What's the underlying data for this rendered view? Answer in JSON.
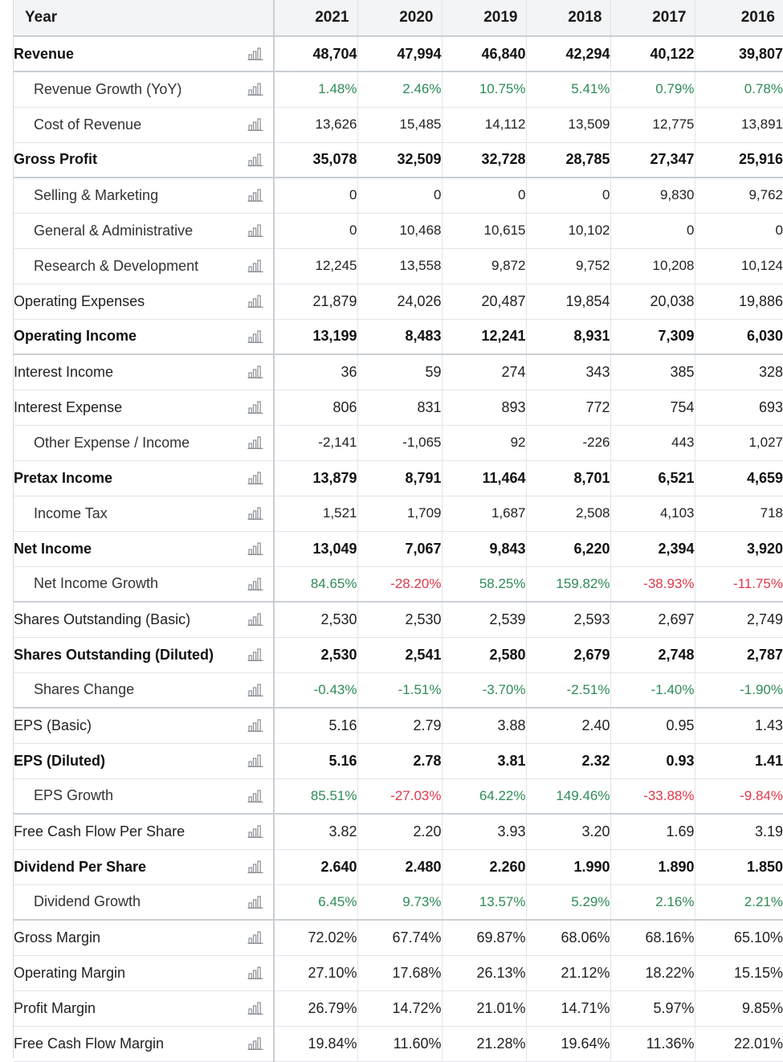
{
  "header": {
    "label": "Year",
    "years": [
      "2021",
      "2020",
      "2019",
      "2018",
      "2017",
      "2016"
    ]
  },
  "rows": [
    {
      "label": "Revenue",
      "style": "bold",
      "values": [
        "48,704",
        "47,994",
        "46,840",
        "42,294",
        "40,122",
        "39,807"
      ]
    },
    {
      "label": "Revenue Growth (YoY)",
      "style": "sub",
      "color": "auto",
      "values": [
        "1.48%",
        "2.46%",
        "10.75%",
        "5.41%",
        "0.79%",
        "0.78%"
      ]
    },
    {
      "label": "Cost of Revenue",
      "style": "sub",
      "values": [
        "13,626",
        "15,485",
        "14,112",
        "13,509",
        "12,775",
        "13,891"
      ]
    },
    {
      "label": "Gross Profit",
      "style": "bold",
      "values": [
        "35,078",
        "32,509",
        "32,728",
        "28,785",
        "27,347",
        "25,916"
      ]
    },
    {
      "label": "Selling & Marketing",
      "style": "sub",
      "values": [
        "0",
        "0",
        "0",
        "0",
        "9,830",
        "9,762"
      ]
    },
    {
      "label": "General & Administrative",
      "style": "sub",
      "values": [
        "0",
        "10,468",
        "10,615",
        "10,102",
        "0",
        "0"
      ]
    },
    {
      "label": "Research & Development",
      "style": "sub",
      "values": [
        "12,245",
        "13,558",
        "9,872",
        "9,752",
        "10,208",
        "10,124"
      ]
    },
    {
      "label": "Operating Expenses",
      "style": "normal",
      "values": [
        "21,879",
        "24,026",
        "20,487",
        "19,854",
        "20,038",
        "19,886"
      ]
    },
    {
      "label": "Operating Income",
      "style": "bold",
      "values": [
        "13,199",
        "8,483",
        "12,241",
        "8,931",
        "7,309",
        "6,030"
      ]
    },
    {
      "label": "Interest Income",
      "style": "normal",
      "values": [
        "36",
        "59",
        "274",
        "343",
        "385",
        "328"
      ]
    },
    {
      "label": "Interest Expense",
      "style": "normal",
      "values": [
        "806",
        "831",
        "893",
        "772",
        "754",
        "693"
      ]
    },
    {
      "label": "Other Expense / Income",
      "style": "sub",
      "values": [
        "-2,141",
        "-1,065",
        "92",
        "-226",
        "443",
        "1,027"
      ]
    },
    {
      "label": "Pretax Income",
      "style": "bold",
      "values": [
        "13,879",
        "8,791",
        "11,464",
        "8,701",
        "6,521",
        "4,659"
      ]
    },
    {
      "label": "Income Tax",
      "style": "sub",
      "values": [
        "1,521",
        "1,709",
        "1,687",
        "2,508",
        "4,103",
        "718"
      ]
    },
    {
      "label": "Net Income",
      "style": "bold",
      "values": [
        "13,049",
        "7,067",
        "9,843",
        "6,220",
        "2,394",
        "3,920"
      ]
    },
    {
      "label": "Net Income Growth",
      "style": "sub",
      "color": "auto",
      "values": [
        "84.65%",
        "-28.20%",
        "58.25%",
        "159.82%",
        "-38.93%",
        "-11.75%"
      ]
    },
    {
      "label": "Shares Outstanding (Basic)",
      "style": "normal",
      "values": [
        "2,530",
        "2,530",
        "2,539",
        "2,593",
        "2,697",
        "2,749"
      ]
    },
    {
      "label": "Shares Outstanding (Diluted)",
      "style": "bold",
      "values": [
        "2,530",
        "2,541",
        "2,580",
        "2,679",
        "2,748",
        "2,787"
      ]
    },
    {
      "label": "Shares Change",
      "style": "sub",
      "color": "green",
      "values": [
        "-0.43%",
        "-1.51%",
        "-3.70%",
        "-2.51%",
        "-1.40%",
        "-1.90%"
      ]
    },
    {
      "label": "EPS (Basic)",
      "style": "normal",
      "values": [
        "5.16",
        "2.79",
        "3.88",
        "2.40",
        "0.95",
        "1.43"
      ]
    },
    {
      "label": "EPS (Diluted)",
      "style": "bold",
      "values": [
        "5.16",
        "2.78",
        "3.81",
        "2.32",
        "0.93",
        "1.41"
      ]
    },
    {
      "label": "EPS Growth",
      "style": "sub",
      "color": "auto",
      "values": [
        "85.51%",
        "-27.03%",
        "64.22%",
        "149.46%",
        "-33.88%",
        "-9.84%"
      ]
    },
    {
      "label": "Free Cash Flow Per Share",
      "style": "normal",
      "values": [
        "3.82",
        "2.20",
        "3.93",
        "3.20",
        "1.69",
        "3.19"
      ]
    },
    {
      "label": "Dividend Per Share",
      "style": "bold",
      "values": [
        "2.640",
        "2.480",
        "2.260",
        "1.990",
        "1.890",
        "1.850"
      ]
    },
    {
      "label": "Dividend Growth",
      "style": "sub",
      "color": "auto",
      "values": [
        "6.45%",
        "9.73%",
        "13.57%",
        "5.29%",
        "2.16%",
        "2.21%"
      ]
    },
    {
      "label": "Gross Margin",
      "style": "normal",
      "values": [
        "72.02%",
        "67.74%",
        "69.87%",
        "68.06%",
        "68.16%",
        "65.10%"
      ]
    },
    {
      "label": "Operating Margin",
      "style": "normal",
      "values": [
        "27.10%",
        "17.68%",
        "26.13%",
        "21.12%",
        "18.22%",
        "15.15%"
      ]
    },
    {
      "label": "Profit Margin",
      "style": "normal",
      "values": [
        "26.79%",
        "14.72%",
        "21.01%",
        "14.71%",
        "5.97%",
        "9.85%"
      ]
    },
    {
      "label": "Free Cash Flow Margin",
      "style": "normal",
      "values": [
        "19.84%",
        "11.60%",
        "21.28%",
        "19.64%",
        "11.36%",
        "22.01%"
      ]
    }
  ],
  "colors": {
    "positive": "#2e8b57",
    "negative": "#e0384a",
    "icon": "#8a8f96"
  },
  "icons": {
    "row_chart": "bar-chart-icon"
  }
}
